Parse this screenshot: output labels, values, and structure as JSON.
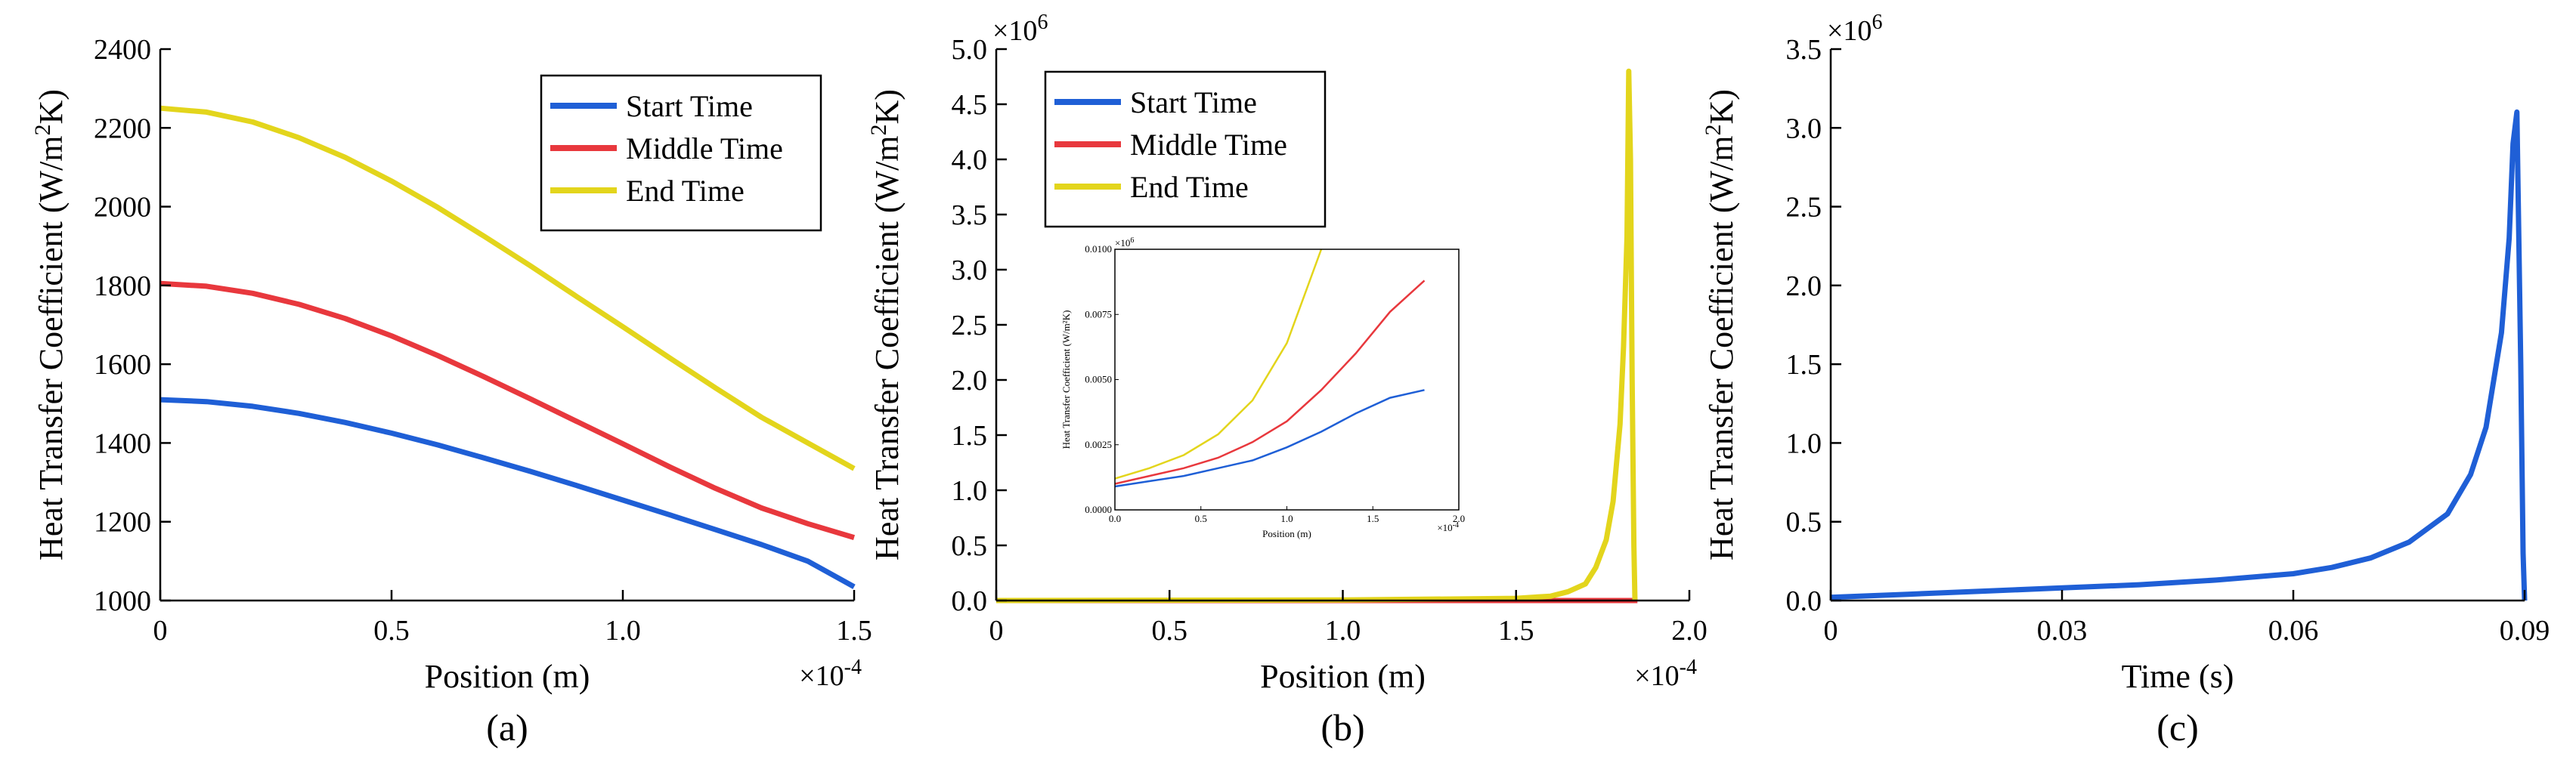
{
  "chart_data": [
    {
      "id": "a",
      "type": "line",
      "panel_label": "(a)",
      "xlabel": "Position (m)",
      "ylabel": "Heat Transfer Coefficient (W/m²K)",
      "ylabel_main": "Heat Transfer Coefficient (W/m",
      "ylabel_sup": "2",
      "ylabel_end": "K)",
      "x_multiplier": "×10",
      "x_multiplier_exp": "-4",
      "xlim": [
        0,
        1.5
      ],
      "ylim": [
        1000,
        2400
      ],
      "xticks": [
        0,
        0.5,
        1.0,
        1.5
      ],
      "xtick_labels": [
        "0",
        "0.5",
        "1.0",
        "1.5"
      ],
      "yticks": [
        1000,
        1200,
        1400,
        1600,
        1800,
        2000,
        2200,
        2400
      ],
      "ytick_labels": [
        "1000",
        "1200",
        "1400",
        "1600",
        "1800",
        "2000",
        "2200",
        "2400"
      ],
      "legend_position": "top-right",
      "series": [
        {
          "name": "Start Time",
          "color": "#1f5fd6",
          "x": [
            0,
            0.1,
            0.2,
            0.3,
            0.4,
            0.5,
            0.6,
            0.7,
            0.8,
            0.9,
            1.0,
            1.1,
            1.2,
            1.3,
            1.4,
            1.5
          ],
          "y": [
            1510,
            1505,
            1493,
            1475,
            1452,
            1425,
            1395,
            1362,
            1328,
            1292,
            1255,
            1218,
            1180,
            1142,
            1100,
            1035
          ]
        },
        {
          "name": "Middle Time",
          "color": "#e8383d",
          "x": [
            0,
            0.1,
            0.2,
            0.3,
            0.4,
            0.5,
            0.6,
            0.7,
            0.8,
            0.9,
            1.0,
            1.1,
            1.2,
            1.3,
            1.4,
            1.5
          ],
          "y": [
            1805,
            1798,
            1780,
            1752,
            1716,
            1672,
            1622,
            1568,
            1512,
            1455,
            1398,
            1340,
            1285,
            1235,
            1195,
            1160
          ]
        },
        {
          "name": "End Time",
          "color": "#e3d51c",
          "x": [
            0,
            0.1,
            0.2,
            0.3,
            0.4,
            0.5,
            0.6,
            0.7,
            0.8,
            0.9,
            1.0,
            1.1,
            1.2,
            1.3,
            1.4,
            1.5
          ],
          "y": [
            2250,
            2240,
            2215,
            2175,
            2125,
            2065,
            1998,
            1925,
            1850,
            1772,
            1695,
            1617,
            1540,
            1465,
            1400,
            1335
          ]
        }
      ]
    },
    {
      "id": "b",
      "type": "line",
      "panel_label": "(b)",
      "xlabel": "Position (m)",
      "ylabel": "Heat Transfer Coefficient (W/m²K)",
      "ylabel_main": "Heat Transfer Coefficient (W/m",
      "ylabel_sup": "2",
      "ylabel_end": "K)",
      "x_multiplier": "×10",
      "x_multiplier_exp": "-4",
      "y_multiplier": "×10",
      "y_multiplier_exp": "6",
      "xlim": [
        0,
        2.0
      ],
      "ylim": [
        0,
        5.0
      ],
      "xticks": [
        0,
        0.5,
        1.0,
        1.5,
        2.0
      ],
      "xtick_labels": [
        "0",
        "0.5",
        "1.0",
        "1.5",
        "2.0"
      ],
      "yticks": [
        0,
        0.5,
        1.0,
        1.5,
        2.0,
        2.5,
        3.0,
        3.5,
        4.0,
        4.5,
        5.0
      ],
      "ytick_labels": [
        "0.0",
        "0.5",
        "1.0",
        "1.5",
        "2.0",
        "2.5",
        "3.0",
        "3.5",
        "4.0",
        "4.5",
        "5.0"
      ],
      "legend_position": "top-left",
      "series": [
        {
          "name": "Start Time",
          "color": "#1f5fd6",
          "x": [
            0,
            0.5,
            1.0,
            1.5,
            1.85
          ],
          "y": [
            0,
            0,
            0,
            0,
            0
          ]
        },
        {
          "name": "Middle Time",
          "color": "#e8383d",
          "x": [
            0,
            0.5,
            1.0,
            1.5,
            1.85
          ],
          "y": [
            0,
            0,
            0,
            0,
            0
          ]
        },
        {
          "name": "End Time",
          "color": "#e3d51c",
          "x": [
            0,
            1.0,
            1.5,
            1.6,
            1.65,
            1.7,
            1.73,
            1.76,
            1.78,
            1.8,
            1.81,
            1.82,
            1.825,
            1.83,
            1.835,
            1.84,
            1.843
          ],
          "y": [
            0,
            0.005,
            0.02,
            0.04,
            0.08,
            0.15,
            0.3,
            0.55,
            0.9,
            1.6,
            2.3,
            3.3,
            4.8,
            4.0,
            2.0,
            0.5,
            0
          ]
        }
      ],
      "inset": {
        "xlim": [
          0,
          2.0
        ],
        "ylim": [
          0,
          0.01
        ],
        "xticks": [
          0,
          0.5,
          1.0,
          1.5,
          2.0
        ],
        "xtick_labels": [
          "0.0",
          "0.5",
          "1.0",
          "1.5",
          "2.0"
        ],
        "yticks": [
          0,
          0.0025,
          0.005,
          0.0075,
          0.01
        ],
        "ytick_labels": [
          "0.0000",
          "0.0025",
          "0.0050",
          "0.0075",
          "0.0100"
        ],
        "xlabel": "Position (m)",
        "ylabel": "Heat Transfer Coefficient (W/m²K)",
        "x_multiplier": "×10",
        "x_multiplier_exp": "-4",
        "y_multiplier": "×10",
        "y_multiplier_exp": "6",
        "series": [
          {
            "name": "Start Time",
            "color": "#1f5fd6",
            "x": [
              0,
              0.2,
              0.4,
              0.6,
              0.8,
              1.0,
              1.2,
              1.4,
              1.6,
              1.8
            ],
            "y": [
              0.0009,
              0.0011,
              0.0013,
              0.0016,
              0.0019,
              0.0024,
              0.003,
              0.0037,
              0.0043,
              0.0046
            ]
          },
          {
            "name": "Middle Time",
            "color": "#e8383d",
            "x": [
              0,
              0.2,
              0.4,
              0.6,
              0.8,
              1.0,
              1.2,
              1.4,
              1.6,
              1.8
            ],
            "y": [
              0.001,
              0.0013,
              0.0016,
              0.002,
              0.0026,
              0.0034,
              0.0046,
              0.006,
              0.0076,
              0.0088
            ]
          },
          {
            "name": "End Time",
            "color": "#e3d51c",
            "x": [
              0,
              0.2,
              0.4,
              0.6,
              0.8,
              1.0,
              1.1,
              1.2
            ],
            "y": [
              0.0012,
              0.0016,
              0.0021,
              0.0029,
              0.0042,
              0.0064,
              0.0082,
              0.0102
            ]
          }
        ]
      }
    },
    {
      "id": "c",
      "type": "line",
      "panel_label": "(c)",
      "xlabel": "Time (s)",
      "ylabel": "Heat Transfer Coefficient (W/m²K)",
      "ylabel_main": "Heat Transfer Coefficient (W/m",
      "ylabel_sup": "2",
      "ylabel_end": "K)",
      "y_multiplier": "×10",
      "y_multiplier_exp": "6",
      "xlim": [
        0,
        0.09
      ],
      "ylim": [
        0,
        3.5
      ],
      "xticks": [
        0,
        0.03,
        0.06,
        0.09
      ],
      "xtick_labels": [
        "0",
        "0.03",
        "0.06",
        "0.09"
      ],
      "yticks": [
        0,
        0.5,
        1.0,
        1.5,
        2.0,
        2.5,
        3.0,
        3.5
      ],
      "ytick_labels": [
        "0.0",
        "0.5",
        "1.0",
        "1.5",
        "2.0",
        "2.5",
        "3.0",
        "3.5"
      ],
      "series": [
        {
          "name": "Heat Transfer Coefficient",
          "color": "#1f5fd6",
          "x": [
            0,
            0.01,
            0.02,
            0.03,
            0.04,
            0.05,
            0.06,
            0.065,
            0.07,
            0.075,
            0.08,
            0.083,
            0.085,
            0.087,
            0.088,
            0.0885,
            0.089,
            0.0895,
            0.0898,
            0.09
          ],
          "y": [
            0.02,
            0.04,
            0.06,
            0.08,
            0.1,
            0.13,
            0.17,
            0.21,
            0.27,
            0.37,
            0.55,
            0.8,
            1.1,
            1.7,
            2.3,
            2.9,
            3.1,
            1.5,
            0.3,
            0
          ]
        }
      ]
    }
  ]
}
